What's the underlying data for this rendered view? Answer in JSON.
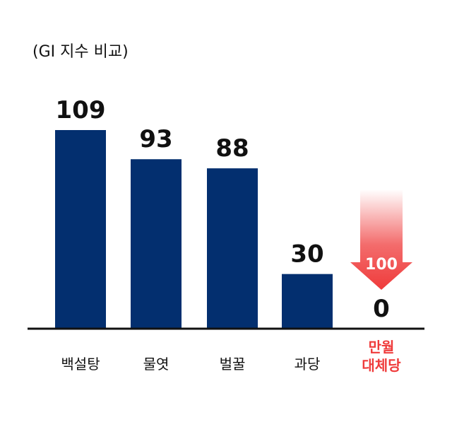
{
  "chart_data": {
    "type": "bar",
    "subtitle": "(GI 지수 비교)",
    "categories": [
      [
        "백설탕"
      ],
      [
        "물엿"
      ],
      [
        "벌꿀"
      ],
      [
        "과당"
      ],
      [
        "만월",
        "대체당"
      ]
    ],
    "values": [
      109,
      93,
      88,
      30,
      0
    ],
    "highlight_index": 4,
    "arrow_label": "100",
    "ylim": [
      0,
      109
    ],
    "bar_color": "#032f6f",
    "highlight_color": "#ef3b3b",
    "grid": false,
    "legend": "none"
  }
}
